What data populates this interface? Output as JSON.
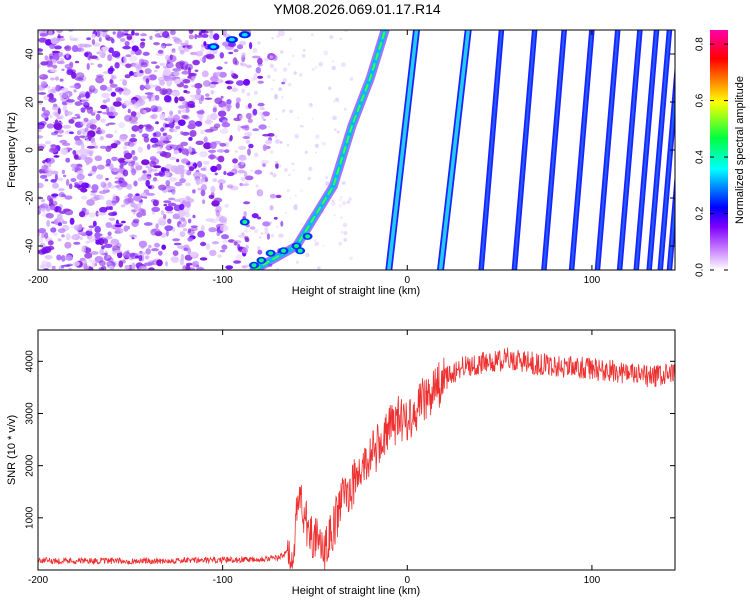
{
  "title": "YM08.2026.069.01.17.R14",
  "chart_data": [
    {
      "type": "heatmap",
      "title": "YM08.2026.069.01.17.R14",
      "xlabel": "Height of straight line (km)",
      "ylabel": "Frequency (Hz)",
      "xlim": [
        -200,
        145
      ],
      "ylim": [
        -50,
        50
      ],
      "xticks": [
        -200,
        -100,
        0,
        100
      ],
      "yticks": [
        -40,
        -20,
        0,
        20,
        40
      ],
      "colorbar": {
        "label": "Normalized spectral amplitude",
        "range": [
          0.0,
          0.85
        ],
        "ticks": [
          0.0,
          0.2,
          0.4,
          0.6,
          0.8
        ],
        "colormap": [
          "#ffffff",
          "#7f00ff",
          "#0000ff",
          "#00ffff",
          "#00ff00",
          "#ffff00",
          "#ff0000",
          "#ff00aa"
        ]
      },
      "features": {
        "noise_region_x": [
          -200,
          -70
        ],
        "main_curve": [
          [
            -83,
            -50
          ],
          [
            -60,
            -40
          ],
          [
            -40,
            -15
          ],
          [
            -30,
            10
          ],
          [
            -20,
            30
          ],
          [
            -12,
            50
          ]
        ],
        "straight_lines_x_at_bottom": [
          -10,
          18,
          40,
          58,
          74,
          89,
          103,
          115,
          124,
          131,
          137,
          142
        ]
      }
    },
    {
      "type": "line",
      "xlabel": "Height of straight line (km)",
      "ylabel": "SNR (10 * v/v)",
      "xlim": [
        -200,
        145
      ],
      "ylim": [
        0,
        4600
      ],
      "xticks": [
        -200,
        -100,
        0,
        100
      ],
      "yticks": [
        1000,
        2000,
        3000,
        4000
      ],
      "color": "#ee3030",
      "series": [
        {
          "name": "SNR",
          "x": [
            -200,
            -150,
            -100,
            -70,
            -62,
            -58,
            -55,
            -50,
            -45,
            -40,
            -35,
            -30,
            -25,
            -20,
            -15,
            -10,
            -5,
            0,
            10,
            20,
            30,
            40,
            55,
            70,
            85,
            100,
            115,
            130,
            145
          ],
          "y": [
            180,
            170,
            190,
            230,
            400,
            1500,
            900,
            600,
            300,
            800,
            1400,
            1600,
            1900,
            2200,
            2400,
            2700,
            2900,
            2900,
            3300,
            3650,
            3900,
            3950,
            4050,
            3950,
            3900,
            3850,
            3800,
            3700,
            3750
          ]
        }
      ]
    }
  ]
}
